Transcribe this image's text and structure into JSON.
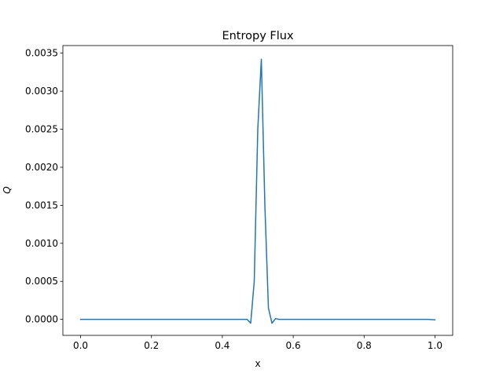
{
  "chart_data": {
    "type": "line",
    "title": "Entropy Flux",
    "xlabel": "x",
    "ylabel": "Q",
    "xlim": [
      -0.05,
      1.05
    ],
    "ylim": [
      -0.00021,
      0.0036
    ],
    "grid": false,
    "xticks": [
      0.0,
      0.2,
      0.4,
      0.6,
      0.8,
      1.0
    ],
    "xtick_labels": [
      "0.0",
      "0.2",
      "0.4",
      "0.6",
      "0.8",
      "1.0"
    ],
    "yticks": [
      0.0,
      0.0005,
      0.001,
      0.0015,
      0.002,
      0.0025,
      0.003,
      0.0035
    ],
    "ytick_labels": [
      "0.0000",
      "0.0005",
      "0.0010",
      "0.0015",
      "0.0020",
      "0.0025",
      "0.0030",
      "0.0035"
    ],
    "series": [
      {
        "color": "#1f77b4",
        "x": [
          0.0,
          0.05,
          0.1,
          0.15,
          0.2,
          0.25,
          0.3,
          0.35,
          0.4,
          0.45,
          0.47,
          0.48,
          0.49,
          0.5,
          0.51,
          0.52,
          0.53,
          0.54,
          0.55,
          0.56,
          0.6,
          0.65,
          0.7,
          0.75,
          0.8,
          0.85,
          0.9,
          0.95,
          0.98,
          1.0
        ],
        "y": [
          0.0,
          0.0,
          0.0,
          0.0,
          0.0,
          0.0,
          0.0,
          0.0,
          0.0,
          0.0,
          0.0,
          -5e-05,
          0.0005,
          0.0025,
          0.00342,
          0.0015,
          0.00015,
          -5e-05,
          1e-05,
          0.0,
          0.0,
          0.0,
          0.0,
          0.0,
          0.0,
          0.0,
          0.0,
          0.0,
          0.0,
          -5e-06
        ]
      }
    ]
  }
}
